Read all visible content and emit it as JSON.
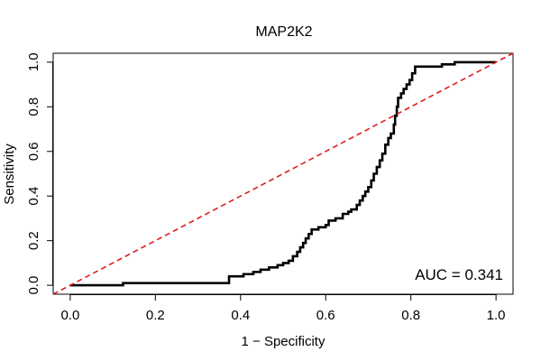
{
  "chart_data": {
    "type": "line",
    "title": "MAP2K2",
    "xlabel": "1 − Specificity",
    "ylabel": "Sensitivity",
    "xlim": [
      -0.04,
      1.04
    ],
    "ylim": [
      -0.04,
      1.04
    ],
    "xticks": [
      0.0,
      0.2,
      0.4,
      0.6,
      0.8,
      1.0
    ],
    "xtick_labels": [
      "0.0",
      "0.2",
      "0.4",
      "0.6",
      "0.8",
      "1.0"
    ],
    "yticks": [
      0.0,
      0.2,
      0.4,
      0.6,
      0.8,
      1.0
    ],
    "ytick_labels": [
      "0.0",
      "0.2",
      "0.4",
      "0.6",
      "0.8",
      "1.0"
    ],
    "grid": false,
    "annotation": "AUC = 0.341",
    "series": [
      {
        "name": "ROC curve",
        "style": "step",
        "color": "#000000",
        "points": [
          [
            0.0,
            0.0
          ],
          [
            0.01,
            0.0
          ],
          [
            0.124,
            0.0
          ],
          [
            0.124,
            0.01
          ],
          [
            0.373,
            0.01
          ],
          [
            0.373,
            0.04
          ],
          [
            0.407,
            0.04
          ],
          [
            0.407,
            0.05
          ],
          [
            0.43,
            0.05
          ],
          [
            0.43,
            0.06
          ],
          [
            0.447,
            0.06
          ],
          [
            0.447,
            0.07
          ],
          [
            0.467,
            0.07
          ],
          [
            0.467,
            0.08
          ],
          [
            0.487,
            0.08
          ],
          [
            0.487,
            0.09
          ],
          [
            0.5,
            0.09
          ],
          [
            0.5,
            0.1
          ],
          [
            0.513,
            0.1
          ],
          [
            0.513,
            0.11
          ],
          [
            0.523,
            0.11
          ],
          [
            0.523,
            0.13
          ],
          [
            0.533,
            0.13
          ],
          [
            0.533,
            0.15
          ],
          [
            0.54,
            0.15
          ],
          [
            0.54,
            0.17
          ],
          [
            0.547,
            0.17
          ],
          [
            0.547,
            0.19
          ],
          [
            0.553,
            0.19
          ],
          [
            0.553,
            0.21
          ],
          [
            0.56,
            0.21
          ],
          [
            0.56,
            0.23
          ],
          [
            0.567,
            0.23
          ],
          [
            0.567,
            0.25
          ],
          [
            0.583,
            0.25
          ],
          [
            0.583,
            0.26
          ],
          [
            0.6,
            0.26
          ],
          [
            0.6,
            0.27
          ],
          [
            0.607,
            0.27
          ],
          [
            0.607,
            0.29
          ],
          [
            0.623,
            0.29
          ],
          [
            0.623,
            0.3
          ],
          [
            0.64,
            0.3
          ],
          [
            0.64,
            0.32
          ],
          [
            0.653,
            0.32
          ],
          [
            0.653,
            0.33
          ],
          [
            0.66,
            0.33
          ],
          [
            0.66,
            0.34
          ],
          [
            0.673,
            0.34
          ],
          [
            0.673,
            0.36
          ],
          [
            0.68,
            0.36
          ],
          [
            0.68,
            0.38
          ],
          [
            0.687,
            0.38
          ],
          [
            0.687,
            0.4
          ],
          [
            0.693,
            0.4
          ],
          [
            0.693,
            0.42
          ],
          [
            0.7,
            0.42
          ],
          [
            0.7,
            0.44
          ],
          [
            0.707,
            0.44
          ],
          [
            0.707,
            0.47
          ],
          [
            0.713,
            0.47
          ],
          [
            0.713,
            0.5
          ],
          [
            0.72,
            0.5
          ],
          [
            0.72,
            0.53
          ],
          [
            0.727,
            0.53
          ],
          [
            0.727,
            0.56
          ],
          [
            0.733,
            0.56
          ],
          [
            0.733,
            0.59
          ],
          [
            0.74,
            0.59
          ],
          [
            0.74,
            0.63
          ],
          [
            0.747,
            0.63
          ],
          [
            0.747,
            0.66
          ],
          [
            0.753,
            0.66
          ],
          [
            0.753,
            0.68
          ],
          [
            0.76,
            0.68
          ],
          [
            0.76,
            0.72
          ],
          [
            0.763,
            0.72
          ],
          [
            0.763,
            0.76
          ],
          [
            0.767,
            0.76
          ],
          [
            0.767,
            0.8
          ],
          [
            0.77,
            0.8
          ],
          [
            0.77,
            0.84
          ],
          [
            0.777,
            0.84
          ],
          [
            0.777,
            0.86
          ],
          [
            0.783,
            0.86
          ],
          [
            0.783,
            0.88
          ],
          [
            0.79,
            0.88
          ],
          [
            0.79,
            0.9
          ],
          [
            0.797,
            0.9
          ],
          [
            0.797,
            0.92
          ],
          [
            0.803,
            0.92
          ],
          [
            0.803,
            0.95
          ],
          [
            0.81,
            0.95
          ],
          [
            0.81,
            0.98
          ],
          [
            0.873,
            0.98
          ],
          [
            0.873,
            0.99
          ],
          [
            0.903,
            0.99
          ],
          [
            0.903,
            1.0
          ],
          [
            1.0,
            1.0
          ]
        ]
      },
      {
        "name": "Chance line",
        "style": "dashed",
        "color": "#e31a1c",
        "points": [
          [
            -0.04,
            -0.04
          ],
          [
            1.04,
            1.04
          ]
        ]
      }
    ]
  }
}
